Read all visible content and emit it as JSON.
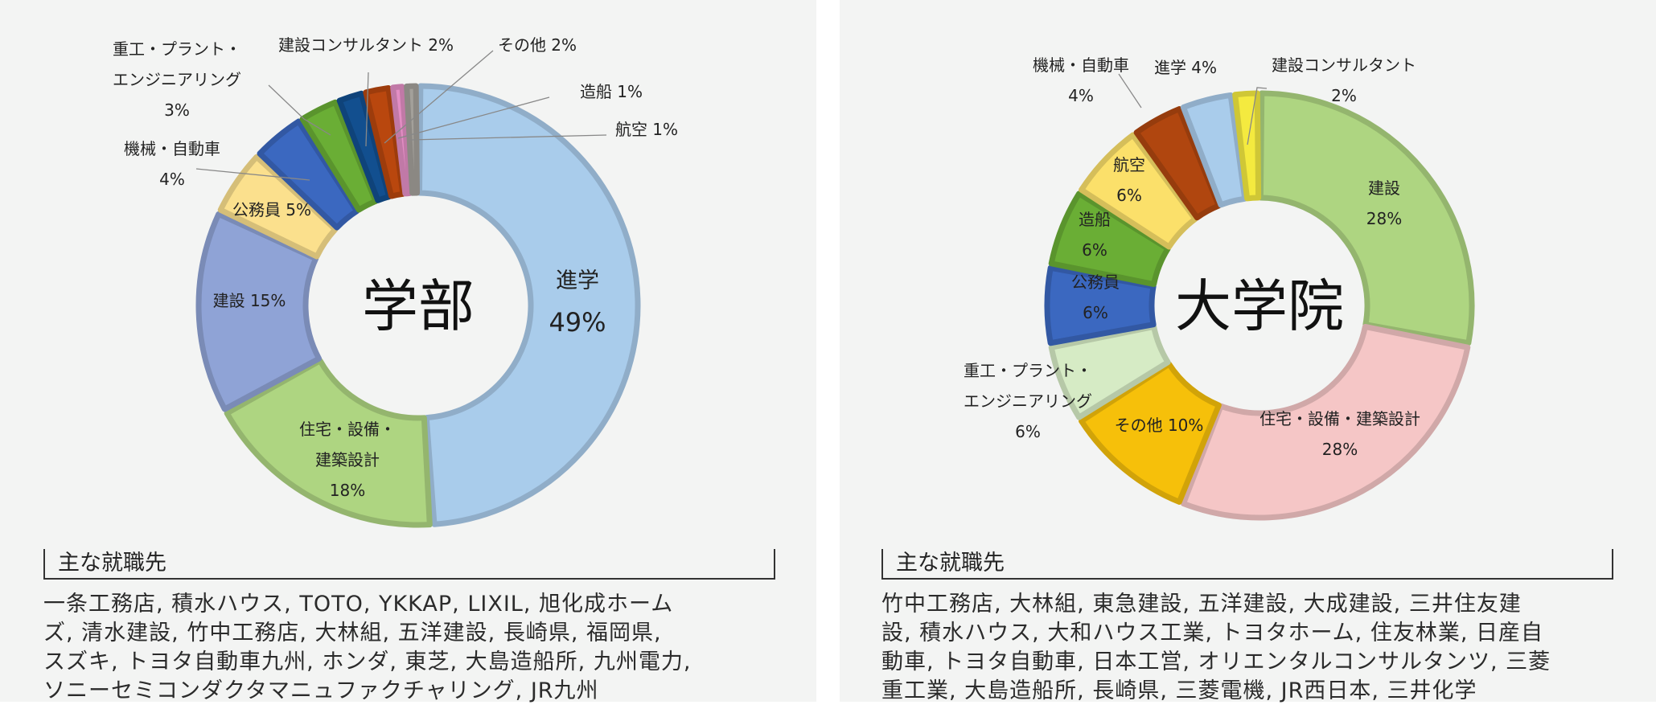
{
  "chart_data": [
    {
      "type": "pie",
      "center_label": "学部",
      "slices": [
        {
          "name": "進学",
          "value": 49,
          "value_label": "49%",
          "color": "#a9cceb"
        },
        {
          "name": "住宅・設備・建築設計",
          "value": 18,
          "value_label": "18%",
          "color": "#aed581"
        },
        {
          "name": "建設",
          "value": 15,
          "value_label": "15%",
          "color": "#8fa3d6"
        },
        {
          "name": "公務員",
          "value": 5,
          "value_label": "5%",
          "color": "#fbe08d"
        },
        {
          "name": "機械・自動車",
          "value": 4,
          "value_label": "4%",
          "color": "#3b68c0"
        },
        {
          "name": "重工・プラント・エンジニアリング",
          "value": 3,
          "value_label": "3%",
          "color": "#6aae35"
        },
        {
          "name": "建設コンサルタント",
          "value": 2,
          "value_label": "2%",
          "color": "#124f8f"
        },
        {
          "name": "その他",
          "value": 2,
          "value_label": "2%",
          "color": "#b9470e"
        },
        {
          "name": "造船",
          "value": 1,
          "value_label": "1%",
          "color": "#e38ec4"
        },
        {
          "name": "航空",
          "value": 1,
          "value_label": "1%",
          "color": "#a3a09a"
        }
      ]
    },
    {
      "type": "pie",
      "center_label": "大学院",
      "slices": [
        {
          "name": "建設",
          "value": 28,
          "value_label": "28%",
          "color": "#aed581"
        },
        {
          "name": "住宅・設備・建築設計",
          "value": 28,
          "value_label": "28%",
          "color": "#f5c6c6"
        },
        {
          "name": "その他",
          "value": 10,
          "value_label": "10%",
          "color": "#f6c00a"
        },
        {
          "name": "重工・プラント・エンジニアリング",
          "value": 6,
          "value_label": "6%",
          "color": "#d6ebc5"
        },
        {
          "name": "公務員",
          "value": 6,
          "value_label": "6%",
          "color": "#3b68c0"
        },
        {
          "name": "造船",
          "value": 6,
          "value_label": "6%",
          "color": "#6aae35"
        },
        {
          "name": "航空",
          "value": 6,
          "value_label": "6%",
          "color": "#fbe06a"
        },
        {
          "name": "機械・自動車",
          "value": 4,
          "value_label": "4%",
          "color": "#b0460f"
        },
        {
          "name": "進学",
          "value": 4,
          "value_label": "4%",
          "color": "#a9cceb"
        },
        {
          "name": "建設コンサルタント",
          "value": 2,
          "value_label": "2%",
          "color": "#f4ea3f"
        }
      ]
    }
  ],
  "panels": {
    "left": {
      "heading": "主な就職先",
      "employers_lines": [
        "一条工務店, 積水ハウス, TOTO, YKKAP, LIXIL, 旭化成ホーム",
        "ズ, 清水建設, 竹中工務店, 大林組, 五洋建設, 長崎県, 福岡県,",
        "スズキ, トヨタ自動車九州, ホンダ, 東芝, 大島造船所, 九州電力,",
        "ソニーセミコンダクタマニュファクチャリング, JR九州"
      ]
    },
    "right": {
      "heading": "主な就職先",
      "employers_lines": [
        "竹中工務店, 大林組, 東急建設, 五洋建設, 大成建設, 三井住友建",
        "設, 積水ハウス, 大和ハウス工業, トヨタホーム, 住友林業, 日産自",
        "動車, トヨタ自動車, 日本工営, オリエンタルコンサルタンツ, 三菱",
        "重工業, 大島造船所, 長崎県, 三菱電機, JR西日本, 三井化学"
      ]
    }
  }
}
